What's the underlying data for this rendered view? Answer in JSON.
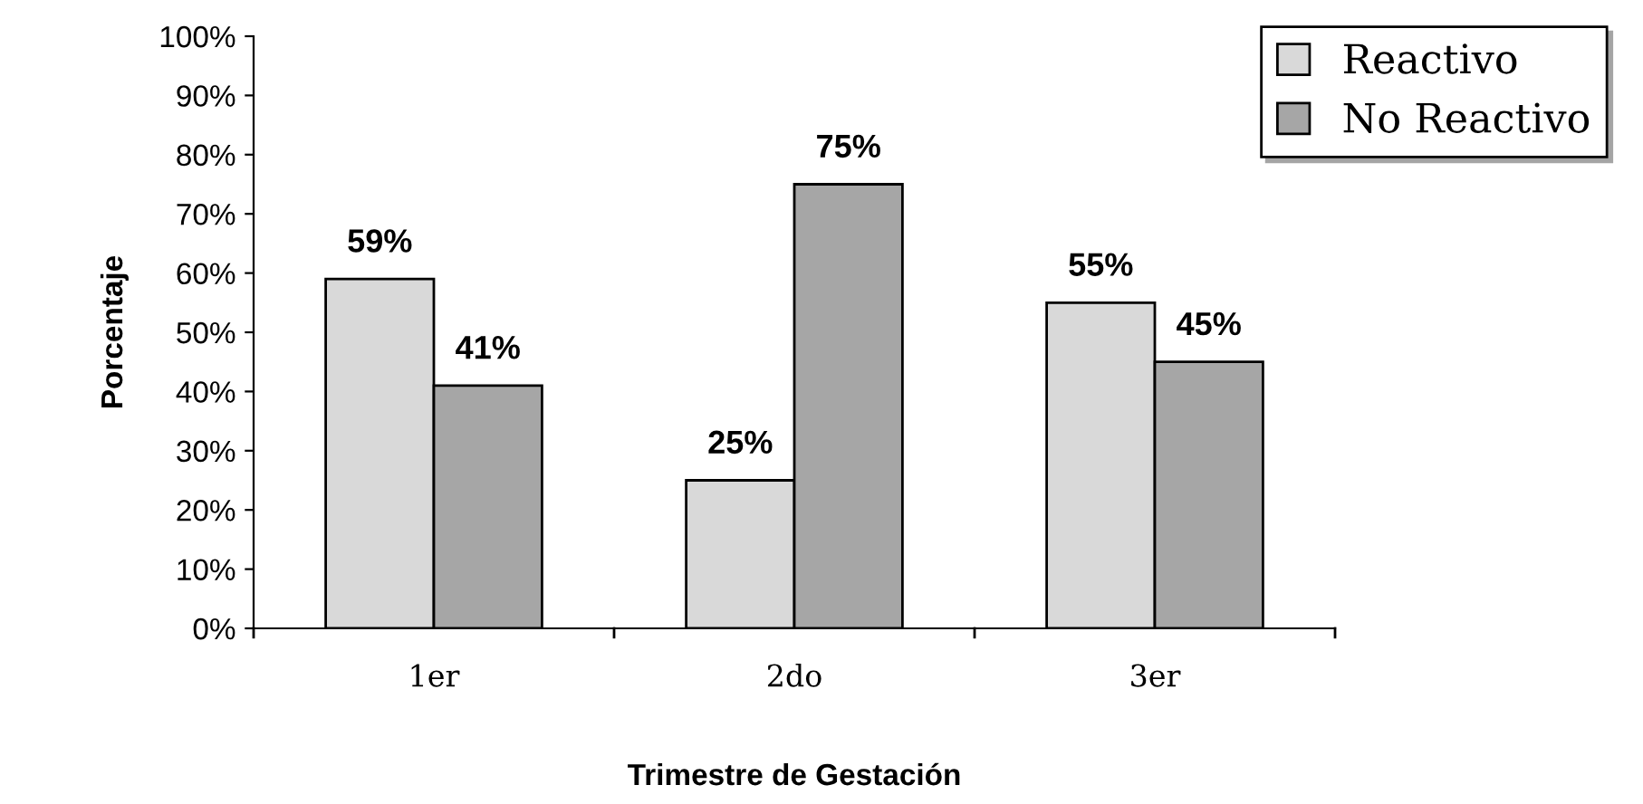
{
  "chart_data": {
    "type": "bar",
    "xlabel": "Trimestre de Gestación",
    "ylabel": "Porcentaje",
    "categories": [
      "1er",
      "2do",
      "3er"
    ],
    "series": [
      {
        "name": "Reactivo",
        "color": "#d9d9d9",
        "values": [
          59,
          25,
          55
        ],
        "value_labels": [
          "59%",
          "25%",
          "55%"
        ]
      },
      {
        "name": "No Reactivo",
        "color": "#a6a6a6",
        "values": [
          41,
          75,
          45
        ],
        "value_labels": [
          "41%",
          "75%",
          "45%"
        ]
      }
    ],
    "ylim": [
      0,
      100
    ],
    "yticks": [
      {
        "value": 0,
        "label": "0%"
      },
      {
        "value": 10,
        "label": "10%"
      },
      {
        "value": 20,
        "label": "20%"
      },
      {
        "value": 30,
        "label": "30%"
      },
      {
        "value": 40,
        "label": "40%"
      },
      {
        "value": 50,
        "label": "50%"
      },
      {
        "value": 60,
        "label": "60%"
      },
      {
        "value": 70,
        "label": "70%"
      },
      {
        "value": 80,
        "label": "80%"
      },
      {
        "value": 90,
        "label": "90%"
      },
      {
        "value": 100,
        "label": "100%"
      }
    ],
    "grid": false,
    "legend": "top right"
  }
}
